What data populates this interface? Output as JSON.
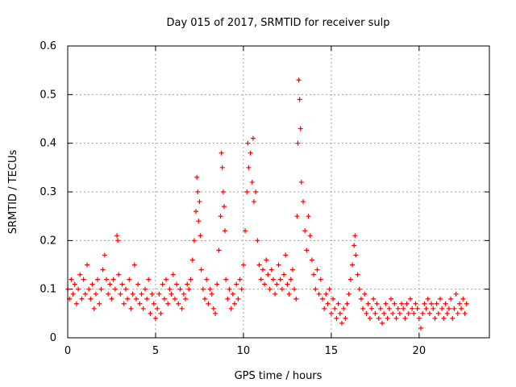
{
  "chart_data": {
    "type": "scatter",
    "title": "Day 015 of 2017, SRMTID for receiver sulp",
    "xlabel": "GPS time / hours",
    "ylabel": "SRMTID / TECUs",
    "xlim": [
      0,
      24
    ],
    "ylim": [
      0,
      0.6
    ],
    "xticks": [
      0,
      5,
      10,
      15,
      20
    ],
    "yticks": [
      0,
      0.1,
      0.2,
      0.3,
      0.4,
      0.5,
      0.6
    ],
    "xtick_labels": [
      "0",
      "5",
      "10",
      "15",
      "20"
    ],
    "ytick_labels": [
      "0",
      "0.1",
      "0.2",
      "0.3",
      "0.4",
      "0.5",
      "0.6"
    ],
    "grid": true,
    "marker": "plus",
    "series": [
      {
        "name": "SRMTID",
        "color": "#ff0000",
        "points": [
          [
            0.0,
            0.1
          ],
          [
            0.1,
            0.08
          ],
          [
            0.2,
            0.12
          ],
          [
            0.3,
            0.09
          ],
          [
            0.4,
            0.11
          ],
          [
            0.5,
            0.07
          ],
          [
            0.6,
            0.1
          ],
          [
            0.7,
            0.13
          ],
          [
            0.8,
            0.08
          ],
          [
            0.9,
            0.12
          ],
          [
            1.0,
            0.09
          ],
          [
            1.1,
            0.15
          ],
          [
            1.2,
            0.1
          ],
          [
            1.3,
            0.08
          ],
          [
            1.4,
            0.11
          ],
          [
            1.5,
            0.06
          ],
          [
            1.6,
            0.09
          ],
          [
            1.7,
            0.12
          ],
          [
            1.8,
            0.07
          ],
          [
            1.9,
            0.1
          ],
          [
            2.0,
            0.14
          ],
          [
            2.1,
            0.17
          ],
          [
            2.2,
            0.12
          ],
          [
            2.3,
            0.09
          ],
          [
            2.4,
            0.11
          ],
          [
            2.5,
            0.08
          ],
          [
            2.6,
            0.12
          ],
          [
            2.7,
            0.1
          ],
          [
            2.8,
            0.21
          ],
          [
            2.85,
            0.2
          ],
          [
            2.9,
            0.13
          ],
          [
            3.0,
            0.09
          ],
          [
            3.1,
            0.11
          ],
          [
            3.2,
            0.07
          ],
          [
            3.3,
            0.1
          ],
          [
            3.4,
            0.08
          ],
          [
            3.5,
            0.12
          ],
          [
            3.6,
            0.06
          ],
          [
            3.7,
            0.09
          ],
          [
            3.8,
            0.15
          ],
          [
            3.9,
            0.08
          ],
          [
            4.0,
            0.11
          ],
          [
            4.1,
            0.07
          ],
          [
            4.2,
            0.09
          ],
          [
            4.3,
            0.06
          ],
          [
            4.4,
            0.1
          ],
          [
            4.5,
            0.08
          ],
          [
            4.6,
            0.12
          ],
          [
            4.7,
            0.05
          ],
          [
            4.8,
            0.09
          ],
          [
            4.9,
            0.07
          ],
          [
            5.0,
            0.04
          ],
          [
            5.1,
            0.06
          ],
          [
            5.2,
            0.09
          ],
          [
            5.3,
            0.05
          ],
          [
            5.4,
            0.11
          ],
          [
            5.5,
            0.08
          ],
          [
            5.6,
            0.12
          ],
          [
            5.7,
            0.07
          ],
          [
            5.8,
            0.1
          ],
          [
            5.9,
            0.09
          ],
          [
            6.0,
            0.13
          ],
          [
            6.1,
            0.08
          ],
          [
            6.2,
            0.11
          ],
          [
            6.3,
            0.07
          ],
          [
            6.4,
            0.1
          ],
          [
            6.5,
            0.06
          ],
          [
            6.6,
            0.09
          ],
          [
            6.7,
            0.08
          ],
          [
            6.8,
            0.11
          ],
          [
            6.9,
            0.1
          ],
          [
            7.0,
            0.12
          ],
          [
            7.1,
            0.16
          ],
          [
            7.2,
            0.2
          ],
          [
            7.3,
            0.26
          ],
          [
            7.35,
            0.33
          ],
          [
            7.4,
            0.3
          ],
          [
            7.45,
            0.24
          ],
          [
            7.5,
            0.28
          ],
          [
            7.55,
            0.21
          ],
          [
            7.6,
            0.14
          ],
          [
            7.7,
            0.1
          ],
          [
            7.8,
            0.08
          ],
          [
            7.9,
            0.12
          ],
          [
            8.0,
            0.07
          ],
          [
            8.1,
            0.1
          ],
          [
            8.2,
            0.09
          ],
          [
            8.3,
            0.06
          ],
          [
            8.4,
            0.05
          ],
          [
            8.5,
            0.11
          ],
          [
            8.6,
            0.18
          ],
          [
            8.7,
            0.25
          ],
          [
            8.75,
            0.38
          ],
          [
            8.8,
            0.35
          ],
          [
            8.85,
            0.3
          ],
          [
            8.9,
            0.27
          ],
          [
            8.95,
            0.22
          ],
          [
            9.0,
            0.12
          ],
          [
            9.1,
            0.08
          ],
          [
            9.2,
            0.1
          ],
          [
            9.3,
            0.06
          ],
          [
            9.4,
            0.09
          ],
          [
            9.5,
            0.07
          ],
          [
            9.6,
            0.11
          ],
          [
            9.7,
            0.08
          ],
          [
            9.8,
            0.12
          ],
          [
            9.9,
            0.1
          ],
          [
            10.0,
            0.15
          ],
          [
            10.1,
            0.22
          ],
          [
            10.2,
            0.3
          ],
          [
            10.25,
            0.4
          ],
          [
            10.3,
            0.35
          ],
          [
            10.4,
            0.38
          ],
          [
            10.5,
            0.32
          ],
          [
            10.55,
            0.41
          ],
          [
            10.6,
            0.28
          ],
          [
            10.7,
            0.3
          ],
          [
            10.8,
            0.2
          ],
          [
            10.9,
            0.15
          ],
          [
            11.0,
            0.12
          ],
          [
            11.1,
            0.14
          ],
          [
            11.2,
            0.11
          ],
          [
            11.3,
            0.16
          ],
          [
            11.4,
            0.13
          ],
          [
            11.5,
            0.1
          ],
          [
            11.6,
            0.14
          ],
          [
            11.7,
            0.12
          ],
          [
            11.8,
            0.09
          ],
          [
            11.9,
            0.11
          ],
          [
            12.0,
            0.15
          ],
          [
            12.1,
            0.12
          ],
          [
            12.2,
            0.1
          ],
          [
            12.3,
            0.13
          ],
          [
            12.4,
            0.17
          ],
          [
            12.5,
            0.11
          ],
          [
            12.6,
            0.09
          ],
          [
            12.7,
            0.12
          ],
          [
            12.8,
            0.14
          ],
          [
            12.9,
            0.1
          ],
          [
            13.0,
            0.08
          ],
          [
            13.05,
            0.25
          ],
          [
            13.1,
            0.4
          ],
          [
            13.15,
            0.53
          ],
          [
            13.2,
            0.49
          ],
          [
            13.25,
            0.43
          ],
          [
            13.3,
            0.32
          ],
          [
            13.4,
            0.28
          ],
          [
            13.5,
            0.22
          ],
          [
            13.6,
            0.18
          ],
          [
            13.7,
            0.25
          ],
          [
            13.8,
            0.21
          ],
          [
            13.9,
            0.16
          ],
          [
            14.0,
            0.13
          ],
          [
            14.1,
            0.1
          ],
          [
            14.2,
            0.14
          ],
          [
            14.3,
            0.09
          ],
          [
            14.4,
            0.12
          ],
          [
            14.5,
            0.08
          ],
          [
            14.6,
            0.06
          ],
          [
            14.7,
            0.09
          ],
          [
            14.8,
            0.07
          ],
          [
            14.9,
            0.1
          ],
          [
            15.0,
            0.05
          ],
          [
            15.1,
            0.08
          ],
          [
            15.2,
            0.06
          ],
          [
            15.3,
            0.04
          ],
          [
            15.4,
            0.07
          ],
          [
            15.5,
            0.05
          ],
          [
            15.6,
            0.03
          ],
          [
            15.7,
            0.06
          ],
          [
            15.8,
            0.04
          ],
          [
            15.9,
            0.07
          ],
          [
            16.0,
            0.09
          ],
          [
            16.1,
            0.12
          ],
          [
            16.2,
            0.15
          ],
          [
            16.3,
            0.19
          ],
          [
            16.35,
            0.21
          ],
          [
            16.4,
            0.17
          ],
          [
            16.5,
            0.13
          ],
          [
            16.6,
            0.1
          ],
          [
            16.7,
            0.08
          ],
          [
            16.8,
            0.06
          ],
          [
            16.9,
            0.09
          ],
          [
            17.0,
            0.05
          ],
          [
            17.1,
            0.07
          ],
          [
            17.2,
            0.04
          ],
          [
            17.3,
            0.06
          ],
          [
            17.4,
            0.08
          ],
          [
            17.5,
            0.05
          ],
          [
            17.6,
            0.07
          ],
          [
            17.7,
            0.04
          ],
          [
            17.8,
            0.06
          ],
          [
            17.9,
            0.03
          ],
          [
            18.0,
            0.05
          ],
          [
            18.1,
            0.07
          ],
          [
            18.2,
            0.04
          ],
          [
            18.3,
            0.06
          ],
          [
            18.4,
            0.08
          ],
          [
            18.5,
            0.05
          ],
          [
            18.6,
            0.07
          ],
          [
            18.7,
            0.04
          ],
          [
            18.8,
            0.06
          ],
          [
            18.9,
            0.05
          ],
          [
            19.0,
            0.07
          ],
          [
            19.1,
            0.06
          ],
          [
            19.2,
            0.04
          ],
          [
            19.3,
            0.07
          ],
          [
            19.4,
            0.05
          ],
          [
            19.5,
            0.08
          ],
          [
            19.6,
            0.06
          ],
          [
            19.7,
            0.05
          ],
          [
            19.8,
            0.07
          ],
          [
            19.9,
            0.06
          ],
          [
            20.0,
            0.04
          ],
          [
            20.1,
            0.02
          ],
          [
            20.2,
            0.05
          ],
          [
            20.3,
            0.07
          ],
          [
            20.4,
            0.06
          ],
          [
            20.5,
            0.08
          ],
          [
            20.6,
            0.05
          ],
          [
            20.7,
            0.07
          ],
          [
            20.8,
            0.06
          ],
          [
            20.9,
            0.04
          ],
          [
            21.0,
            0.07
          ],
          [
            21.1,
            0.05
          ],
          [
            21.2,
            0.08
          ],
          [
            21.3,
            0.06
          ],
          [
            21.4,
            0.04
          ],
          [
            21.5,
            0.07
          ],
          [
            21.6,
            0.05
          ],
          [
            21.7,
            0.06
          ],
          [
            21.8,
            0.08
          ],
          [
            21.9,
            0.04
          ],
          [
            22.0,
            0.06
          ],
          [
            22.1,
            0.09
          ],
          [
            22.2,
            0.05
          ],
          [
            22.3,
            0.07
          ],
          [
            22.4,
            0.06
          ],
          [
            22.5,
            0.08
          ],
          [
            22.6,
            0.05
          ],
          [
            22.7,
            0.07
          ]
        ]
      }
    ]
  }
}
